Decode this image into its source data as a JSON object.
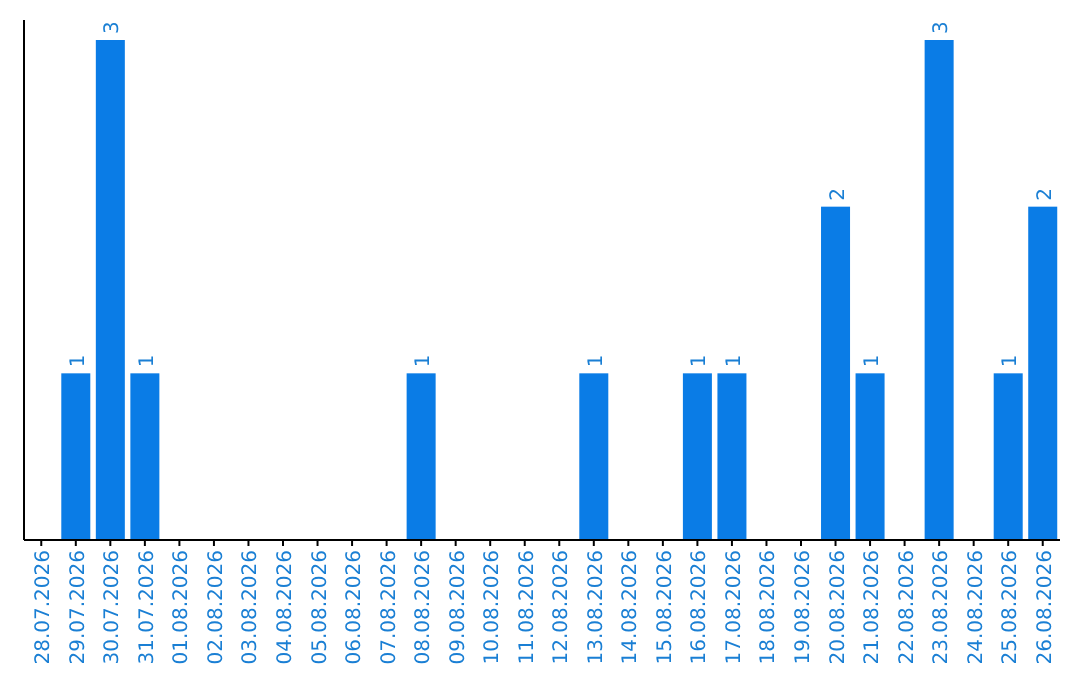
{
  "chart_data": {
    "type": "bar",
    "categories": [
      "28.07.2026",
      "29.07.2026",
      "30.07.2026",
      "31.07.2026",
      "01.08.2026",
      "02.08.2026",
      "03.08.2026",
      "04.08.2026",
      "05.08.2026",
      "06.08.2026",
      "07.08.2026",
      "08.08.2026",
      "09.08.2026",
      "10.08.2026",
      "11.08.2026",
      "12.08.2026",
      "13.08.2026",
      "14.08.2026",
      "15.08.2026",
      "16.08.2026",
      "17.08.2026",
      "18.08.2026",
      "19.08.2026",
      "20.08.2026",
      "21.08.2026",
      "22.08.2026",
      "23.08.2026",
      "24.08.2026",
      "25.08.2026",
      "26.08.2026"
    ],
    "values": [
      0,
      1,
      3,
      1,
      0,
      0,
      0,
      0,
      0,
      0,
      0,
      1,
      0,
      0,
      0,
      0,
      1,
      0,
      0,
      1,
      1,
      0,
      0,
      2,
      1,
      0,
      3,
      0,
      1,
      2
    ],
    "value_labels": [
      null,
      "1",
      "3",
      "1",
      null,
      null,
      null,
      null,
      null,
      null,
      null,
      "1",
      null,
      null,
      null,
      null,
      "1",
      null,
      null,
      "1",
      "1",
      null,
      null,
      "2",
      "1",
      null,
      "3",
      null,
      "1",
      "2"
    ],
    "color": "#0a7ce6"
  }
}
